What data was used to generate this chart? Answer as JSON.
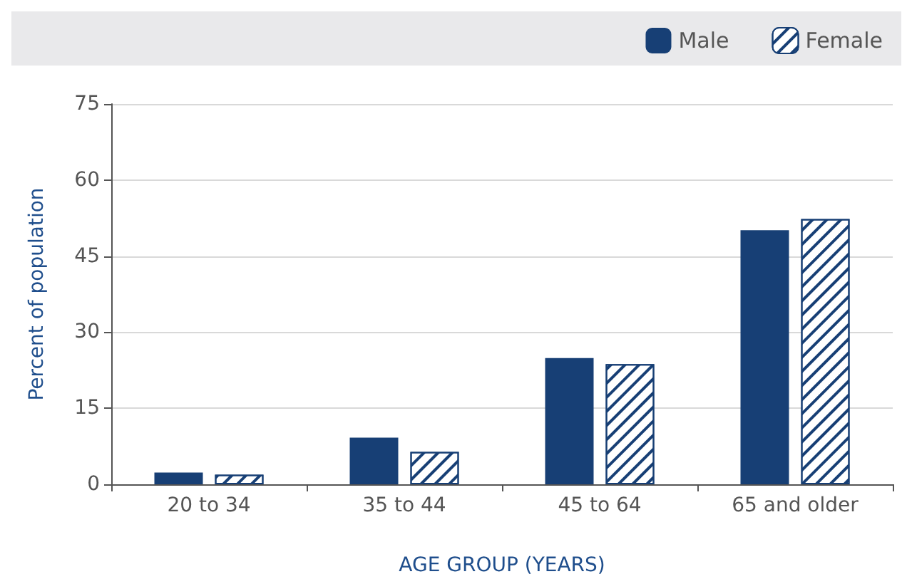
{
  "chart_data": {
    "type": "bar",
    "xlabel": "AGE GROUP (YEARS)",
    "ylabel": "Percent of population",
    "categories": [
      "20 to 34",
      "35 to 44",
      "45 to 64",
      "65 and older"
    ],
    "series": [
      {
        "name": "Male",
        "color": "#173f75",
        "values": [
          2.3,
          9.2,
          24.9,
          50.1
        ]
      },
      {
        "name": "Female",
        "color": "#173f75",
        "values": [
          1.9,
          6.4,
          23.7,
          52.3
        ]
      }
    ],
    "ylim": [
      0,
      75
    ],
    "yticks": [
      0,
      15,
      30,
      45,
      60,
      75
    ],
    "grid": "y",
    "legend": "top right"
  }
}
